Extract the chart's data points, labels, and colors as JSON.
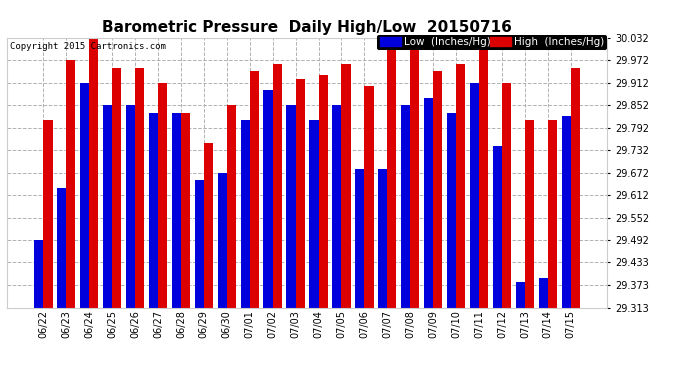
{
  "title": "Barometric Pressure  Daily High/Low  20150716",
  "copyright": "Copyright 2015 Cartronics.com",
  "legend_low": "Low  (Inches/Hg)",
  "legend_high": "High  (Inches/Hg)",
  "dates": [
    "06/22",
    "06/23",
    "06/24",
    "06/25",
    "06/26",
    "06/27",
    "06/28",
    "06/29",
    "06/30",
    "07/01",
    "07/02",
    "07/03",
    "07/04",
    "07/05",
    "07/06",
    "07/07",
    "07/08",
    "07/09",
    "07/10",
    "07/11",
    "07/12",
    "07/13",
    "07/14",
    "07/15"
  ],
  "low_values": [
    29.492,
    29.632,
    29.912,
    29.852,
    29.852,
    29.832,
    29.832,
    29.652,
    29.672,
    29.812,
    29.892,
    29.852,
    29.812,
    29.852,
    29.682,
    29.682,
    29.852,
    29.872,
    29.832,
    29.912,
    29.742,
    29.382,
    29.392,
    29.822
  ],
  "high_values": [
    29.812,
    29.972,
    30.032,
    29.952,
    29.952,
    29.912,
    29.832,
    29.752,
    29.852,
    29.942,
    29.962,
    29.922,
    29.932,
    29.962,
    29.902,
    30.012,
    30.042,
    29.942,
    29.962,
    30.032,
    29.912,
    29.812,
    29.812,
    29.952
  ],
  "ylim_min": 29.313,
  "ylim_max": 30.032,
  "yticks": [
    29.313,
    29.373,
    29.433,
    29.492,
    29.552,
    29.612,
    29.672,
    29.732,
    29.792,
    29.852,
    29.912,
    29.972,
    30.032
  ],
  "low_color": "#0000dd",
  "high_color": "#dd0000",
  "background_color": "#ffffff",
  "grid_color": "#aaaaaa",
  "bar_width": 0.4,
  "title_fontsize": 11,
  "tick_fontsize": 7,
  "legend_fontsize": 7.5
}
